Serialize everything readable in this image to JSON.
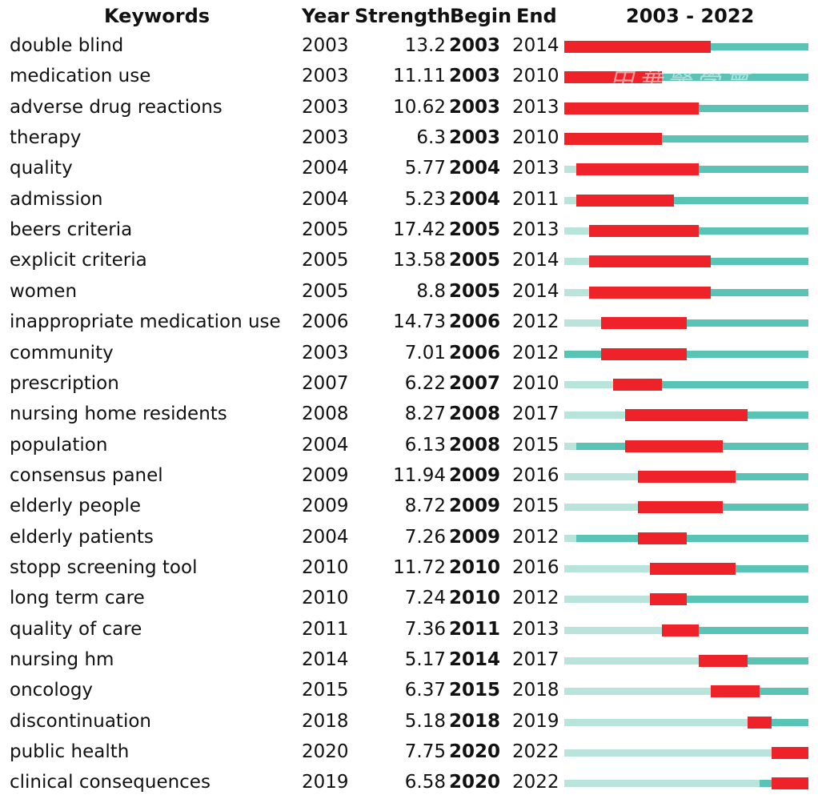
{
  "header": {
    "keywords": "Keywords",
    "year": "Year",
    "strength": "Strength",
    "begin": "Begin",
    "end": "End",
    "range": "2003 - 2022"
  },
  "watermark": "中華醫學會",
  "colors": {
    "burst": "#ee2229",
    "before_appearance": "#b8e4dc",
    "present": "#59c3b6"
  },
  "chart_data": {
    "type": "table",
    "range_start": 2003,
    "range_end": 2022,
    "columns": [
      "Keywords",
      "Year",
      "Strength",
      "Begin",
      "End",
      "2003 - 2022"
    ],
    "rows": [
      {
        "keyword": "double blind",
        "year": 2003,
        "strength": "13.2",
        "begin": 2003,
        "end": 2014
      },
      {
        "keyword": "medication use",
        "year": 2003,
        "strength": "11.11",
        "begin": 2003,
        "end": 2010
      },
      {
        "keyword": "adverse drug reactions",
        "year": 2003,
        "strength": "10.62",
        "begin": 2003,
        "end": 2013
      },
      {
        "keyword": "therapy",
        "year": 2003,
        "strength": "6.3",
        "begin": 2003,
        "end": 2010
      },
      {
        "keyword": "quality",
        "year": 2004,
        "strength": "5.77",
        "begin": 2004,
        "end": 2013
      },
      {
        "keyword": "admission",
        "year": 2004,
        "strength": "5.23",
        "begin": 2004,
        "end": 2011
      },
      {
        "keyword": "beers criteria",
        "year": 2005,
        "strength": "17.42",
        "begin": 2005,
        "end": 2013
      },
      {
        "keyword": "explicit criteria",
        "year": 2005,
        "strength": "13.58",
        "begin": 2005,
        "end": 2014
      },
      {
        "keyword": "women",
        "year": 2005,
        "strength": "8.8",
        "begin": 2005,
        "end": 2014
      },
      {
        "keyword": "inappropriate medication use",
        "year": 2006,
        "strength": "14.73",
        "begin": 2006,
        "end": 2012
      },
      {
        "keyword": "community",
        "year": 2003,
        "strength": "7.01",
        "begin": 2006,
        "end": 2012
      },
      {
        "keyword": "prescription",
        "year": 2007,
        "strength": "6.22",
        "begin": 2007,
        "end": 2010
      },
      {
        "keyword": "nursing home residents",
        "year": 2008,
        "strength": "8.27",
        "begin": 2008,
        "end": 2017
      },
      {
        "keyword": "population",
        "year": 2004,
        "strength": "6.13",
        "begin": 2008,
        "end": 2015
      },
      {
        "keyword": "consensus panel",
        "year": 2009,
        "strength": "11.94",
        "begin": 2009,
        "end": 2016
      },
      {
        "keyword": "elderly people",
        "year": 2009,
        "strength": "8.72",
        "begin": 2009,
        "end": 2015
      },
      {
        "keyword": "elderly patients",
        "year": 2004,
        "strength": "7.26",
        "begin": 2009,
        "end": 2012
      },
      {
        "keyword": "stopp screening tool",
        "year": 2010,
        "strength": "11.72",
        "begin": 2010,
        "end": 2016
      },
      {
        "keyword": "long term care",
        "year": 2010,
        "strength": "7.24",
        "begin": 2010,
        "end": 2012
      },
      {
        "keyword": "quality of care",
        "year": 2011,
        "strength": "7.36",
        "begin": 2011,
        "end": 2013
      },
      {
        "keyword": "nursing hm",
        "year": 2014,
        "strength": "5.17",
        "begin": 2014,
        "end": 2017
      },
      {
        "keyword": "oncology",
        "year": 2015,
        "strength": "6.37",
        "begin": 2015,
        "end": 2018
      },
      {
        "keyword": "discontinuation",
        "year": 2018,
        "strength": "5.18",
        "begin": 2018,
        "end": 2019
      },
      {
        "keyword": "public health",
        "year": 2020,
        "strength": "7.75",
        "begin": 2020,
        "end": 2022
      },
      {
        "keyword": "clinical consequences",
        "year": 2019,
        "strength": "6.58",
        "begin": 2020,
        "end": 2022
      }
    ]
  }
}
